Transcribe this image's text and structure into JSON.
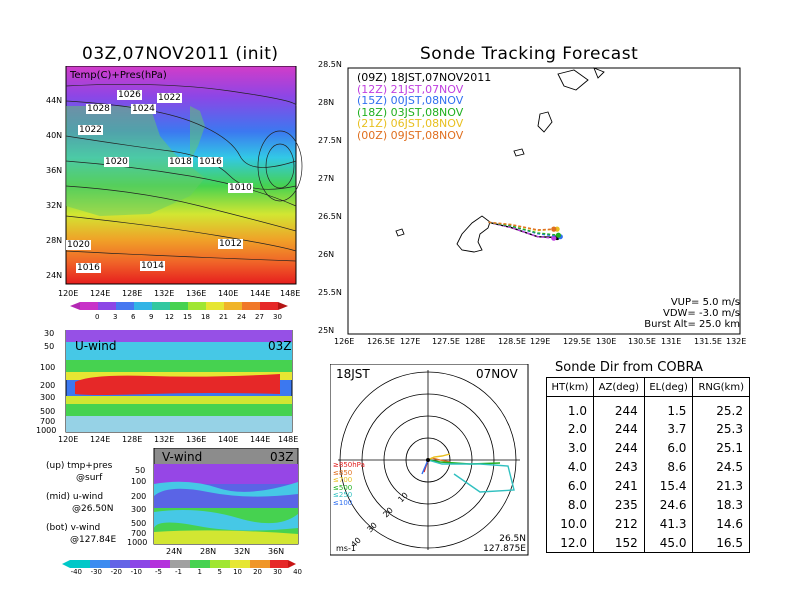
{
  "left": {
    "title": "03Z,07NOV2011 (init)",
    "map": {
      "overlay": "Temp(C)+Pres(hPa)",
      "lat_labels": [
        "44N",
        "40N",
        "36N",
        "32N",
        "28N",
        "24N"
      ],
      "lon_labels": [
        "120E",
        "124E",
        "128E",
        "132E",
        "136E",
        "140E",
        "144E",
        "148E"
      ],
      "pressure_labels": [
        "1026",
        "1022",
        "1028",
        "1024",
        "1022",
        "1020",
        "1018",
        "1016",
        "1010",
        "1012",
        "1016",
        "1014",
        "1020"
      ],
      "colorbar_ticks": [
        "0",
        "3",
        "6",
        "9",
        "12",
        "15",
        "18",
        "21",
        "24",
        "27",
        "30"
      ]
    },
    "uwind": {
      "label": "U-wind",
      "time": "03Z",
      "levels": [
        "30",
        "50",
        "100",
        "200",
        "300",
        "500",
        "700",
        "1000"
      ],
      "lon_labels": [
        "120E",
        "124E",
        "128E",
        "132E",
        "136E",
        "140E",
        "144E",
        "148E"
      ]
    },
    "vwind": {
      "label": "V-wind",
      "time": "03Z",
      "levels": [
        "50",
        "100",
        "200",
        "300",
        "500",
        "700",
        "1000"
      ],
      "lat_labels": [
        "24N",
        "28N",
        "32N",
        "36N"
      ],
      "colorbar_ticks": [
        "-40",
        "-30",
        "-20",
        "-10",
        "-5",
        "-1",
        "1",
        "5",
        "10",
        "20",
        "30",
        "40"
      ]
    },
    "legend": {
      "up": "(up)  tmp+pres",
      "up2": "@surf",
      "mid": "(mid)  u-wind",
      "mid2": "@26.50N",
      "bot": "(bot)  v-wind",
      "bot2": "@127.84E"
    }
  },
  "colors": {
    "orange": "#ff9a3c",
    "yellow": "#f4e23a",
    "green": "#3cc83c",
    "purple": "#b046e8",
    "red": "#ff2020",
    "blue": "#1e5ae6"
  },
  "track": {
    "title": "Sonde Tracking Forecast",
    "lat_labels": [
      "28.5N",
      "28N",
      "27.5N",
      "27N",
      "26.5N",
      "26N",
      "25.5N",
      "25N"
    ],
    "lon_labels": [
      "126E",
      "126.5E",
      "127E",
      "127.5E",
      "128E",
      "128.5E",
      "129E",
      "129.5E",
      "130E",
      "130.5E",
      "131E",
      "131.5E",
      "132E"
    ],
    "legend": [
      {
        "z": "(09Z)",
        "text": "18JST,07NOV2011",
        "color": "#000000"
      },
      {
        "z": "(12Z)",
        "text": "21JST,07NOV",
        "color": "#c040e0"
      },
      {
        "z": "(15Z)",
        "text": "00JST,08NOV",
        "color": "#3070f0"
      },
      {
        "z": "(18Z)",
        "text": "03JST,08NOV",
        "color": "#20b020"
      },
      {
        "z": "(21Z)",
        "text": "06JST,08NOV",
        "color": "#e8c020"
      },
      {
        "z": "(00Z)",
        "text": "09JST,08NOV",
        "color": "#e07020"
      }
    ],
    "params": [
      "VUP=  5.0 m/s",
      "VDW= -3.0 m/s",
      "Burst Alt=  25.0 km"
    ]
  },
  "chart_data": [
    {
      "type": "table",
      "title": "Sonde Dir from COBRA",
      "columns": [
        "HT(km)",
        "AZ(deg)",
        "EL(deg)",
        "RNG(km)"
      ],
      "rows": [
        [
          "1.0",
          "244",
          "1.5",
          "25.2"
        ],
        [
          "2.0",
          "244",
          "3.7",
          "25.3"
        ],
        [
          "3.0",
          "244",
          "6.0",
          "25.1"
        ],
        [
          "4.0",
          "243",
          "8.6",
          "24.5"
        ],
        [
          "6.0",
          "241",
          "15.4",
          "21.3"
        ],
        [
          "8.0",
          "235",
          "24.6",
          "18.3"
        ],
        [
          "10.0",
          "212",
          "41.3",
          "14.6"
        ],
        [
          "12.0",
          "152",
          "45.0",
          "16.5"
        ]
      ]
    },
    {
      "type": "scatter",
      "title": "Sonde Tracking Forecast",
      "xlim": [
        126,
        132
      ],
      "ylim": [
        25,
        28.5
      ],
      "series": [
        {
          "name": "18JST,07NOV2011",
          "x": [
            128.15,
            128.5,
            128.9,
            129.2
          ],
          "y": [
            26.47,
            26.4,
            26.28,
            26.27
          ]
        },
        {
          "name": "21JST,07NOV",
          "x": [
            128.15,
            128.5,
            128.9,
            129.15
          ],
          "y": [
            26.47,
            26.4,
            26.28,
            26.26
          ]
        },
        {
          "name": "00JST,08NOV",
          "x": [
            128.15,
            128.5,
            128.9,
            129.25
          ],
          "y": [
            26.47,
            26.42,
            26.32,
            26.28
          ]
        },
        {
          "name": "03JST,08NOV",
          "x": [
            128.15,
            128.5,
            128.9,
            129.22
          ],
          "y": [
            26.47,
            26.42,
            26.33,
            26.3
          ]
        },
        {
          "name": "06JST,08NOV",
          "x": [
            128.15,
            128.5,
            128.9,
            129.2
          ],
          "y": [
            26.47,
            26.44,
            26.36,
            26.38
          ]
        },
        {
          "name": "09JST,08NOV",
          "x": [
            128.15,
            128.5,
            128.9,
            129.15
          ],
          "y": [
            26.47,
            26.44,
            26.37,
            26.38
          ]
        }
      ]
    }
  ],
  "polar": {
    "time_left": "18JST",
    "date_right": "07NOV",
    "ring_labels": [
      "10",
      "20",
      "30",
      "40"
    ],
    "levels": [
      "≥850hPa",
      "≤850",
      "≤700",
      "≤500",
      "≤250",
      "≤100"
    ],
    "unit": "ms-1",
    "lat": "26.5N",
    "lon": "127.875E"
  }
}
